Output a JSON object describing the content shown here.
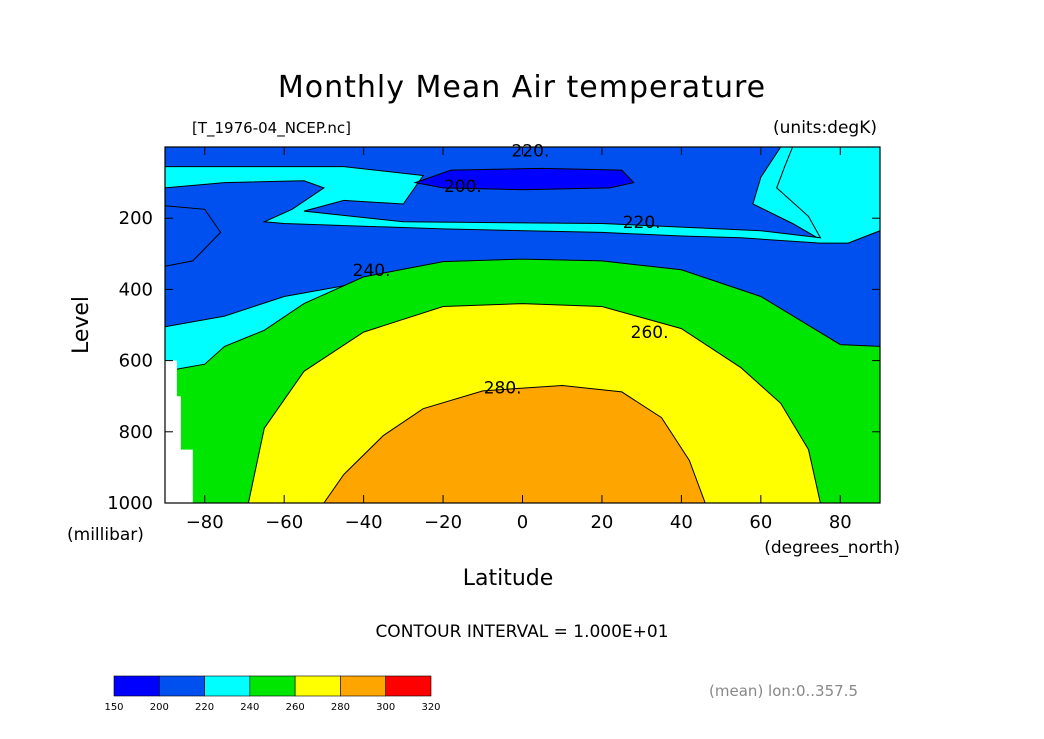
{
  "chart_data": {
    "type": "heatmap",
    "title": "Monthly Mean Air temperature",
    "subtitle_left": "[T_1976-04_NCEP.nc]",
    "subtitle_right": "(units:degK)",
    "xlabel": "Latitude",
    "xunits": "(degrees_north)",
    "ylabel": "Level",
    "yunits": "(millibar)",
    "xlim": [
      -90,
      90
    ],
    "ylim": [
      1000,
      0
    ],
    "x_ticks": [
      -80,
      -60,
      -40,
      -20,
      0,
      20,
      40,
      60,
      80
    ],
    "x_tick_labels": [
      "−80",
      "−60",
      "−40",
      "−20",
      "0",
      "20",
      "40",
      "60",
      "80"
    ],
    "y_ticks": [
      200,
      400,
      600,
      800,
      1000
    ],
    "y_tick_labels": [
      "200",
      "400",
      "600",
      "800",
      "1000"
    ],
    "contour_interval_text": "CONTOUR INTERVAL = 1.000E+01",
    "footer_note": "(mean) lon:0..357.5",
    "contour_labels": [
      {
        "text": "220.",
        "lat": 2,
        "level": 10
      },
      {
        "text": "200.",
        "lat": -15,
        "level": 110
      },
      {
        "text": "220.",
        "lat": 30,
        "level": 210
      },
      {
        "text": "240.",
        "lat": -38,
        "level": 345
      },
      {
        "text": "260.",
        "lat": 32,
        "level": 520
      },
      {
        "text": "280.",
        "lat": -5,
        "level": 675
      }
    ],
    "colorbar": {
      "boundaries": [
        150,
        200,
        220,
        240,
        260,
        280,
        300,
        320
      ],
      "labels": [
        "150",
        "200",
        "220",
        "240",
        "260",
        "280",
        "300",
        "320"
      ],
      "colors": [
        "#0000ff",
        "#0050f0",
        "#00ffff",
        "#00e600",
        "#ffff00",
        "#ffa500",
        "#ff0000"
      ]
    },
    "regions": [
      {
        "band": "<200",
        "color": "#0000ff",
        "polygon": [
          [
            -27,
            100
          ],
          [
            -18,
            65
          ],
          [
            5,
            60
          ],
          [
            25,
            65
          ],
          [
            28,
            100
          ],
          [
            22,
            115
          ],
          [
            0,
            120
          ],
          [
            -20,
            115
          ]
        ]
      },
      {
        "band": "200-220",
        "color": "#0050f0",
        "polygon": [
          [
            -90,
            0
          ],
          [
            65,
            0
          ],
          [
            60,
            85
          ],
          [
            58,
            160
          ],
          [
            68,
            215
          ],
          [
            75,
            260
          ],
          [
            82,
            270
          ],
          [
            90,
            235
          ],
          [
            90,
            615
          ],
          [
            82,
            595
          ],
          [
            75,
            565
          ],
          [
            65,
            525
          ],
          [
            50,
            455
          ],
          [
            35,
            395
          ],
          [
            20,
            365
          ],
          [
            0,
            355
          ],
          [
            -20,
            360
          ],
          [
            -40,
            380
          ],
          [
            -60,
            420
          ],
          [
            -75,
            475
          ],
          [
            -90,
            505
          ]
        ]
      },
      {
        "band": "<220 (polar cap)",
        "color": "#0050f0",
        "polygon": [
          [
            -90,
            165
          ],
          [
            -80,
            175
          ],
          [
            -76,
            240
          ],
          [
            -83,
            320
          ],
          [
            -90,
            335
          ]
        ]
      },
      {
        "band": "220-240",
        "color": "#00ffff",
        "polygon": [
          [
            -90,
            115
          ],
          [
            -75,
            100
          ],
          [
            -55,
            95
          ],
          [
            -50,
            115
          ],
          [
            -58,
            175
          ],
          [
            -65,
            210
          ],
          [
            -60,
            215
          ],
          [
            -20,
            230
          ],
          [
            20,
            240
          ],
          [
            40,
            250
          ],
          [
            55,
            255
          ],
          [
            75,
            270
          ],
          [
            82,
            270
          ],
          [
            90,
            235
          ],
          [
            90,
            0
          ],
          [
            68,
            0
          ],
          [
            66,
            55
          ],
          [
            64,
            115
          ],
          [
            72,
            195
          ],
          [
            75,
            255
          ],
          [
            60,
            235
          ],
          [
            20,
            215
          ],
          [
            -30,
            210
          ],
          [
            -55,
            180
          ],
          [
            -45,
            150
          ],
          [
            -30,
            160
          ],
          [
            -25,
            80
          ],
          [
            -45,
            55
          ],
          [
            -75,
            55
          ],
          [
            -90,
            55
          ]
        ]
      },
      {
        "band": "240-260",
        "color": "#00e600",
        "polygon": [
          [
            -90,
            630
          ],
          [
            -80,
            610
          ],
          [
            -75,
            560
          ],
          [
            -65,
            515
          ],
          [
            -55,
            440
          ],
          [
            -40,
            365
          ],
          [
            -20,
            322
          ],
          [
            0,
            315
          ],
          [
            20,
            320
          ],
          [
            40,
            345
          ],
          [
            60,
            420
          ],
          [
            80,
            555
          ],
          [
            90,
            560
          ],
          [
            90,
            1000
          ],
          [
            -90,
            1000
          ]
        ]
      },
      {
        "band": "260-280",
        "color": "#ffff00",
        "polygon": [
          [
            -69,
            1000
          ],
          [
            -65,
            790
          ],
          [
            -55,
            630
          ],
          [
            -40,
            520
          ],
          [
            -20,
            448
          ],
          [
            0,
            440
          ],
          [
            20,
            448
          ],
          [
            40,
            510
          ],
          [
            55,
            620
          ],
          [
            65,
            720
          ],
          [
            72,
            850
          ],
          [
            75,
            1000
          ]
        ]
      },
      {
        "band": "280-300",
        "color": "#ffa500",
        "polygon": [
          [
            -50,
            1000
          ],
          [
            -45,
            920
          ],
          [
            -35,
            810
          ],
          [
            -25,
            735
          ],
          [
            -10,
            685
          ],
          [
            10,
            670
          ],
          [
            25,
            688
          ],
          [
            35,
            760
          ],
          [
            42,
            880
          ],
          [
            46,
            1000
          ]
        ]
      }
    ],
    "missing_data_note": "white gap near -90 to -85 latitude below 600 mb"
  }
}
